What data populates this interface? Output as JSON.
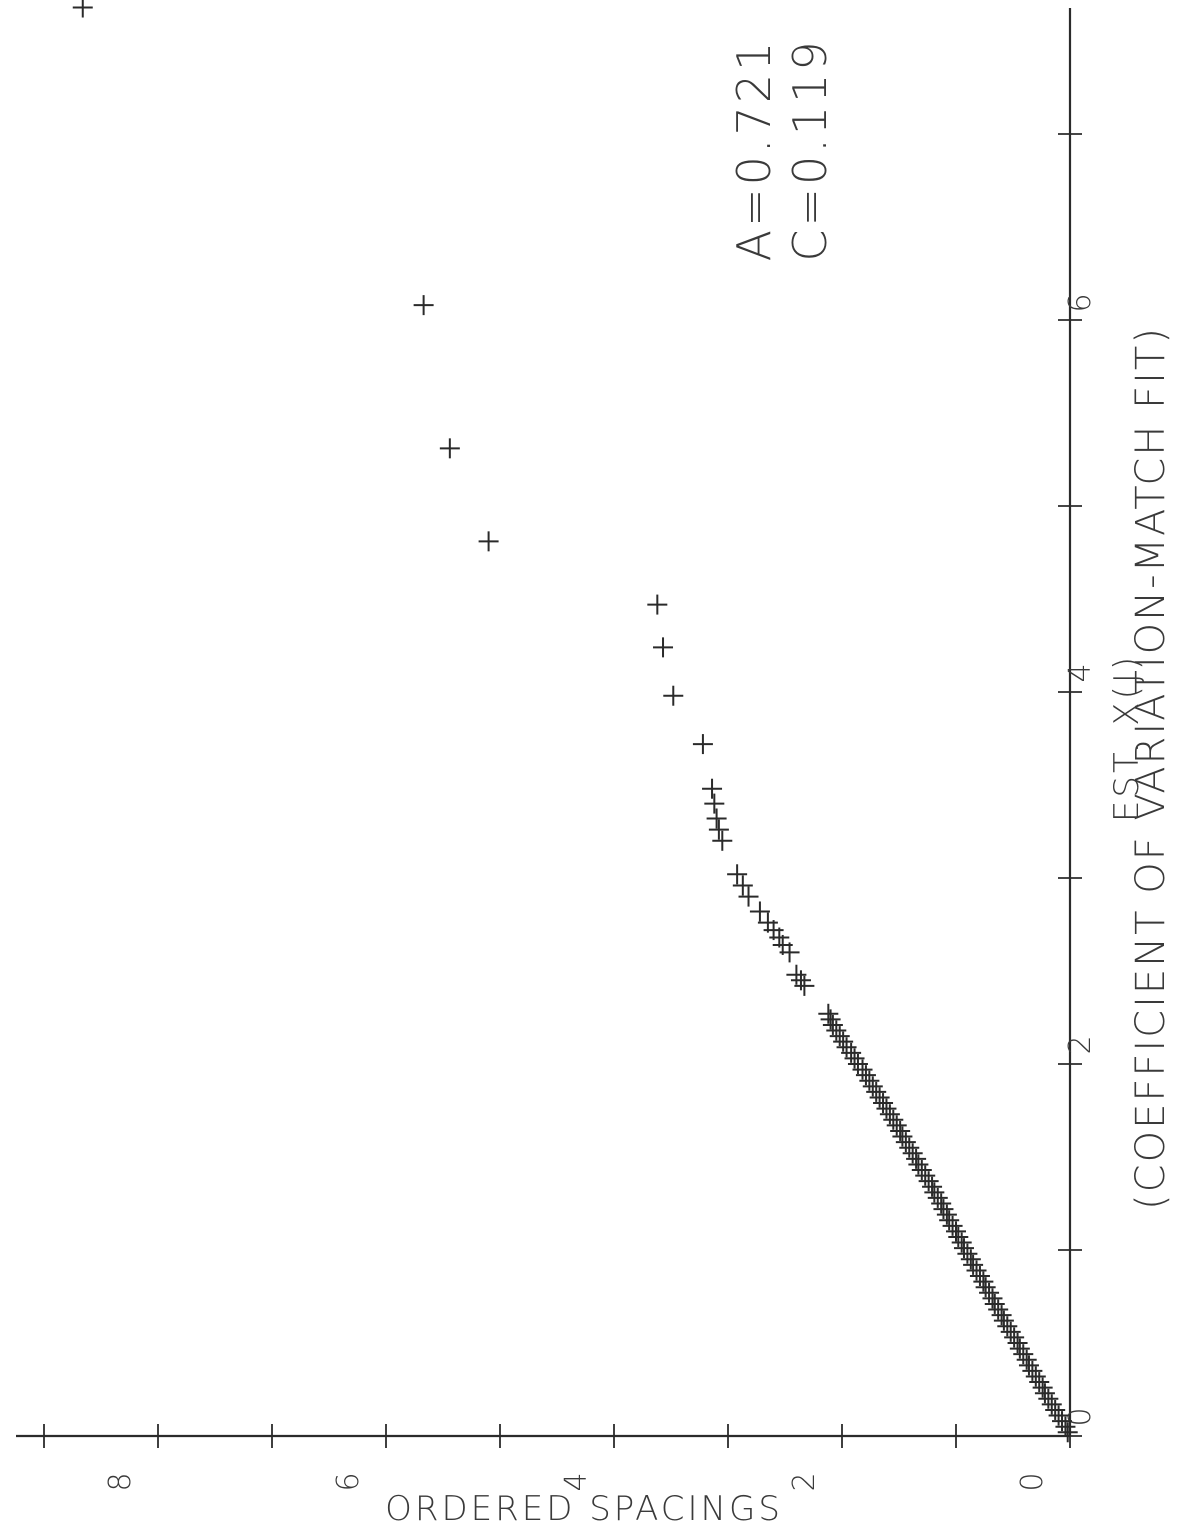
{
  "chart_data": {
    "type": "scatter",
    "title": "(COEFFICIENT OF VARIATION-MATCH FIT)",
    "xlabel": "EST. X(J)",
    "ylabel": "ORDERED SPACINGS",
    "xlim": [
      0,
      7.7
    ],
    "ylim": [
      0,
      9
    ],
    "x_ticks": [
      "0",
      "2",
      "4",
      "6"
    ],
    "y_ticks": [
      "0",
      "2",
      "4",
      "6",
      "8"
    ],
    "annotations": [
      "A=0.721",
      "C=0.119"
    ],
    "series": [
      {
        "marker": "+",
        "points": [
          [
            0.02,
            0.02
          ],
          [
            0.05,
            0.04
          ],
          [
            0.08,
            0.07
          ],
          [
            0.11,
            0.1
          ],
          [
            0.14,
            0.13
          ],
          [
            0.17,
            0.16
          ],
          [
            0.2,
            0.19
          ],
          [
            0.23,
            0.22
          ],
          [
            0.26,
            0.24
          ],
          [
            0.29,
            0.27
          ],
          [
            0.32,
            0.3
          ],
          [
            0.35,
            0.33
          ],
          [
            0.38,
            0.36
          ],
          [
            0.41,
            0.38
          ],
          [
            0.44,
            0.41
          ],
          [
            0.47,
            0.44
          ],
          [
            0.5,
            0.46
          ],
          [
            0.53,
            0.49
          ],
          [
            0.56,
            0.52
          ],
          [
            0.59,
            0.55
          ],
          [
            0.62,
            0.58
          ],
          [
            0.65,
            0.6
          ],
          [
            0.68,
            0.63
          ],
          [
            0.71,
            0.66
          ],
          [
            0.74,
            0.68
          ],
          [
            0.77,
            0.71
          ],
          [
            0.8,
            0.74
          ],
          [
            0.83,
            0.76
          ],
          [
            0.86,
            0.79
          ],
          [
            0.89,
            0.82
          ],
          [
            0.92,
            0.85
          ],
          [
            0.95,
            0.87
          ],
          [
            0.98,
            0.9
          ],
          [
            1.01,
            0.93
          ],
          [
            1.04,
            0.95
          ],
          [
            1.07,
            0.98
          ],
          [
            1.1,
            1.0
          ],
          [
            1.13,
            1.03
          ],
          [
            1.16,
            1.06
          ],
          [
            1.19,
            1.08
          ],
          [
            1.22,
            1.11
          ],
          [
            1.25,
            1.13
          ],
          [
            1.28,
            1.16
          ],
          [
            1.31,
            1.19
          ],
          [
            1.34,
            1.21
          ],
          [
            1.37,
            1.24
          ],
          [
            1.4,
            1.27
          ],
          [
            1.43,
            1.3
          ],
          [
            1.46,
            1.33
          ],
          [
            1.49,
            1.35
          ],
          [
            1.52,
            1.38
          ],
          [
            1.55,
            1.41
          ],
          [
            1.58,
            1.44
          ],
          [
            1.61,
            1.47
          ],
          [
            1.64,
            1.49
          ],
          [
            1.67,
            1.52
          ],
          [
            1.7,
            1.55
          ],
          [
            1.73,
            1.58
          ],
          [
            1.76,
            1.61
          ],
          [
            1.79,
            1.64
          ],
          [
            1.82,
            1.67
          ],
          [
            1.85,
            1.7
          ],
          [
            1.88,
            1.73
          ],
          [
            1.91,
            1.76
          ],
          [
            1.94,
            1.79
          ],
          [
            1.97,
            1.82
          ],
          [
            2.0,
            1.86
          ],
          [
            2.03,
            1.89
          ],
          [
            2.06,
            1.92
          ],
          [
            2.09,
            1.96
          ],
          [
            2.12,
            1.99
          ],
          [
            2.15,
            2.02
          ],
          [
            2.18,
            2.05
          ],
          [
            2.21,
            2.08
          ],
          [
            2.24,
            2.1
          ],
          [
            2.27,
            2.12
          ],
          [
            2.42,
            2.33
          ],
          [
            2.45,
            2.36
          ],
          [
            2.48,
            2.4
          ],
          [
            2.6,
            2.46
          ],
          [
            2.64,
            2.52
          ],
          [
            2.68,
            2.55
          ],
          [
            2.72,
            2.6
          ],
          [
            2.76,
            2.65
          ],
          [
            2.82,
            2.72
          ],
          [
            2.9,
            2.82
          ],
          [
            2.96,
            2.87
          ],
          [
            3.02,
            2.92
          ],
          [
            3.2,
            3.05
          ],
          [
            3.26,
            3.08
          ],
          [
            3.32,
            3.1
          ],
          [
            3.4,
            3.12
          ],
          [
            3.48,
            3.14
          ],
          [
            3.72,
            3.22
          ],
          [
            3.98,
            3.48
          ],
          [
            4.24,
            3.57
          ],
          [
            4.47,
            3.62
          ],
          [
            4.81,
            5.1
          ],
          [
            5.31,
            5.44
          ],
          [
            6.08,
            5.67
          ],
          [
            7.68,
            8.66
          ]
        ]
      }
    ]
  }
}
